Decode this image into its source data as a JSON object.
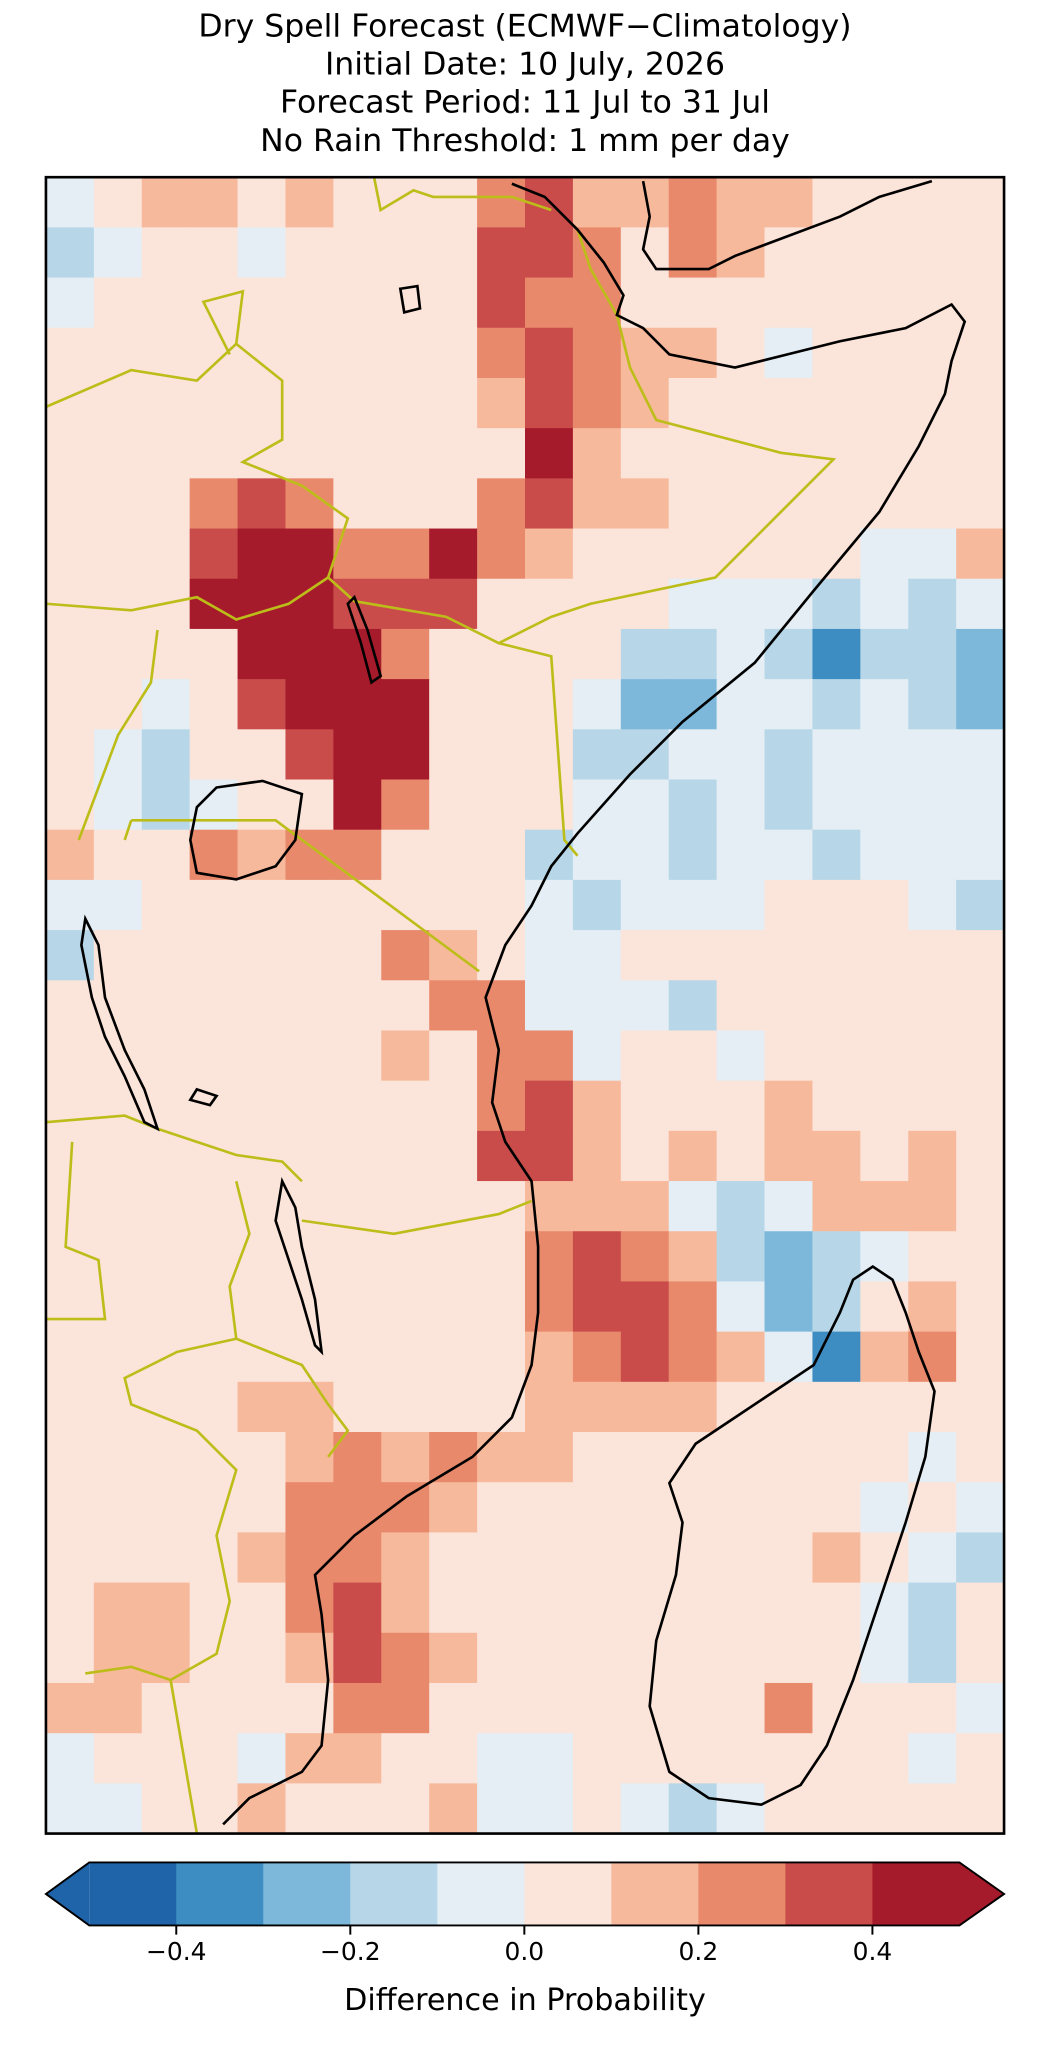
{
  "chart_data": {
    "type": "map",
    "title": [
      "Dry Spell Forecast (ECMWF−Climatology)",
      "Initial Date: 10 July, 2026",
      "Forecast Period: 11 Jul to 31 Jul",
      "No Rain Threshold: 1 mm per day"
    ],
    "values": [
      [
        -0.05,
        0.05,
        0.15,
        0.15,
        0.05,
        0.15,
        0.05,
        0.05,
        0.05,
        0.25,
        0.35,
        0.15,
        0.15,
        0.25,
        0.15,
        0.15,
        0.05,
        0.05,
        0.05,
        0.05
      ],
      [
        -0.15,
        -0.05,
        0.05,
        0.05,
        -0.05,
        0.05,
        0.05,
        0.05,
        0.05,
        0.35,
        0.35,
        0.25,
        0.05,
        0.25,
        0.15,
        0.05,
        0.05,
        0.05,
        0.05,
        0.05
      ],
      [
        -0.05,
        0.05,
        0.05,
        0.05,
        0.05,
        0.05,
        0.05,
        0.05,
        0.05,
        0.35,
        0.25,
        0.25,
        0.05,
        0.05,
        0.05,
        0.05,
        0.05,
        0.05,
        0.05,
        0.05
      ],
      [
        0.05,
        0.05,
        0.05,
        0.05,
        0.05,
        0.05,
        0.05,
        0.05,
        0.05,
        0.25,
        0.35,
        0.25,
        0.15,
        0.15,
        0.05,
        -0.05,
        0.05,
        0.05,
        0.05,
        0.05
      ],
      [
        0.05,
        0.05,
        0.05,
        0.05,
        0.05,
        0.05,
        0.05,
        0.05,
        0.05,
        0.15,
        0.35,
        0.25,
        0.15,
        0.05,
        0.05,
        0.05,
        0.05,
        0.05,
        0.05,
        0.05
      ],
      [
        0.05,
        0.05,
        0.05,
        0.05,
        0.05,
        0.05,
        0.05,
        0.05,
        0.05,
        0.05,
        0.45,
        0.15,
        0.05,
        0.05,
        0.05,
        0.05,
        0.05,
        0.05,
        0.05,
        0.05
      ],
      [
        0.05,
        0.05,
        0.05,
        0.25,
        0.35,
        0.25,
        0.05,
        0.05,
        0.05,
        0.25,
        0.35,
        0.15,
        0.15,
        0.05,
        0.05,
        0.05,
        0.05,
        0.05,
        0.05,
        0.05
      ],
      [
        0.05,
        0.05,
        0.05,
        0.35,
        0.45,
        0.45,
        0.25,
        0.25,
        0.45,
        0.25,
        0.15,
        0.05,
        0.05,
        0.05,
        0.05,
        0.05,
        0.05,
        -0.05,
        -0.05,
        0.15
      ],
      [
        0.05,
        0.05,
        0.05,
        0.45,
        0.45,
        0.45,
        0.35,
        0.35,
        0.35,
        0.05,
        0.05,
        0.05,
        0.05,
        -0.05,
        -0.05,
        -0.05,
        -0.15,
        -0.05,
        -0.15,
        -0.05
      ],
      [
        0.05,
        0.05,
        0.05,
        0.05,
        0.45,
        0.45,
        0.45,
        0.25,
        0.05,
        0.05,
        0.05,
        0.05,
        -0.15,
        -0.15,
        -0.05,
        -0.15,
        -0.35,
        -0.15,
        -0.15,
        -0.25
      ],
      [
        0.05,
        0.05,
        -0.05,
        0.05,
        0.35,
        0.45,
        0.45,
        0.45,
        0.05,
        0.05,
        0.05,
        -0.05,
        -0.25,
        -0.25,
        -0.05,
        -0.05,
        -0.15,
        -0.05,
        -0.15,
        -0.25
      ],
      [
        0.05,
        -0.05,
        -0.15,
        0.05,
        0.05,
        0.35,
        0.45,
        0.45,
        0.05,
        0.05,
        0.05,
        -0.15,
        -0.15,
        -0.05,
        -0.05,
        -0.15,
        -0.05,
        -0.05,
        -0.05,
        -0.05
      ],
      [
        0.05,
        -0.05,
        -0.15,
        -0.05,
        0.05,
        0.05,
        0.45,
        0.25,
        0.05,
        0.05,
        0.05,
        -0.05,
        -0.05,
        -0.15,
        -0.05,
        -0.15,
        -0.05,
        -0.05,
        -0.05,
        -0.05
      ],
      [
        0.15,
        0.05,
        0.05,
        0.25,
        0.15,
        0.25,
        0.25,
        0.05,
        0.05,
        0.05,
        -0.15,
        -0.05,
        -0.05,
        -0.15,
        -0.05,
        -0.05,
        -0.15,
        -0.05,
        -0.05,
        -0.05
      ],
      [
        -0.05,
        -0.05,
        0.05,
        0.05,
        0.05,
        0.05,
        0.05,
        0.05,
        0.05,
        0.05,
        -0.05,
        -0.15,
        -0.05,
        -0.05,
        -0.05,
        0.05,
        0.05,
        0.05,
        -0.05,
        -0.15
      ],
      [
        -0.15,
        0.05,
        0.05,
        0.05,
        0.05,
        0.05,
        0.05,
        0.25,
        0.15,
        0.05,
        -0.05,
        -0.05,
        0.05,
        0.05,
        0.05,
        0.05,
        0.05,
        0.05,
        0.05,
        0.05
      ],
      [
        0.05,
        0.05,
        0.05,
        0.05,
        0.05,
        0.05,
        0.05,
        0.05,
        0.25,
        0.25,
        -0.05,
        -0.05,
        -0.05,
        -0.15,
        0.05,
        0.05,
        0.05,
        0.05,
        0.05,
        0.05
      ],
      [
        0.05,
        0.05,
        0.05,
        0.05,
        0.05,
        0.05,
        0.05,
        0.15,
        0.05,
        0.25,
        0.25,
        -0.05,
        0.05,
        0.05,
        -0.05,
        0.05,
        0.05,
        0.05,
        0.05,
        0.05
      ],
      [
        0.05,
        0.05,
        0.05,
        0.05,
        0.05,
        0.05,
        0.05,
        0.05,
        0.05,
        0.25,
        0.35,
        0.15,
        0.05,
        0.05,
        0.05,
        0.15,
        0.05,
        0.05,
        0.05,
        0.05
      ],
      [
        0.05,
        0.05,
        0.05,
        0.05,
        0.05,
        0.05,
        0.05,
        0.05,
        0.05,
        0.35,
        0.35,
        0.15,
        0.05,
        0.15,
        0.05,
        0.15,
        0.15,
        0.05,
        0.15,
        0.05
      ],
      [
        0.05,
        0.05,
        0.05,
        0.05,
        0.05,
        0.05,
        0.05,
        0.05,
        0.05,
        0.05,
        0.15,
        0.15,
        0.15,
        -0.05,
        -0.15,
        -0.05,
        0.15,
        0.15,
        0.15,
        0.05
      ],
      [
        0.05,
        0.05,
        0.05,
        0.05,
        0.05,
        0.05,
        0.05,
        0.05,
        0.05,
        0.05,
        0.25,
        0.35,
        0.25,
        0.15,
        -0.15,
        -0.25,
        -0.15,
        -0.05,
        0.05,
        0.05
      ],
      [
        0.05,
        0.05,
        0.05,
        0.05,
        0.05,
        0.05,
        0.05,
        0.05,
        0.05,
        0.05,
        0.25,
        0.35,
        0.35,
        0.25,
        -0.05,
        -0.25,
        -0.15,
        0.05,
        0.15,
        0.05
      ],
      [
        0.05,
        0.05,
        0.05,
        0.05,
        0.05,
        0.05,
        0.05,
        0.05,
        0.05,
        0.05,
        0.15,
        0.25,
        0.35,
        0.25,
        0.15,
        -0.05,
        -0.35,
        0.15,
        0.25,
        0.05
      ],
      [
        0.05,
        0.05,
        0.05,
        0.05,
        0.15,
        0.15,
        0.05,
        0.05,
        0.05,
        0.05,
        0.15,
        0.15,
        0.15,
        0.15,
        0.05,
        0.05,
        0.05,
        0.05,
        0.05,
        0.05
      ],
      [
        0.05,
        0.05,
        0.05,
        0.05,
        0.05,
        0.15,
        0.25,
        0.15,
        0.25,
        0.15,
        0.15,
        0.05,
        0.05,
        0.05,
        0.05,
        0.05,
        0.05,
        0.05,
        -0.05,
        0.05
      ],
      [
        0.05,
        0.05,
        0.05,
        0.05,
        0.05,
        0.25,
        0.25,
        0.25,
        0.15,
        0.05,
        0.05,
        0.05,
        0.05,
        0.05,
        0.05,
        0.05,
        0.05,
        -0.05,
        0.05,
        -0.05
      ],
      [
        0.05,
        0.05,
        0.05,
        0.05,
        0.15,
        0.25,
        0.25,
        0.15,
        0.05,
        0.05,
        0.05,
        0.05,
        0.05,
        0.05,
        0.05,
        0.05,
        0.15,
        0.05,
        -0.05,
        -0.15
      ],
      [
        0.05,
        0.15,
        0.15,
        0.05,
        0.05,
        0.25,
        0.35,
        0.15,
        0.05,
        0.05,
        0.05,
        0.05,
        0.05,
        0.05,
        0.05,
        0.05,
        0.05,
        -0.05,
        -0.15,
        0.05
      ],
      [
        0.05,
        0.15,
        0.15,
        0.05,
        0.05,
        0.15,
        0.35,
        0.25,
        0.15,
        0.05,
        0.05,
        0.05,
        0.05,
        0.05,
        0.05,
        0.05,
        0.05,
        -0.05,
        -0.15,
        0.05
      ],
      [
        0.15,
        0.15,
        0.05,
        0.05,
        0.05,
        0.05,
        0.25,
        0.25,
        0.05,
        0.05,
        0.05,
        0.05,
        0.05,
        0.05,
        0.05,
        0.25,
        0.05,
        0.05,
        0.05,
        -0.05
      ],
      [
        -0.05,
        0.05,
        0.05,
        0.05,
        -0.05,
        0.15,
        0.15,
        0.05,
        0.05,
        -0.05,
        -0.05,
        0.05,
        0.05,
        0.05,
        0.05,
        0.05,
        0.05,
        0.05,
        -0.05,
        0.05
      ],
      [
        -0.05,
        -0.05,
        0.05,
        0.05,
        0.15,
        0.05,
        0.05,
        0.05,
        0.15,
        -0.05,
        -0.05,
        0.05,
        -0.05,
        -0.15,
        -0.05,
        0.05,
        0.05,
        0.05,
        0.05,
        0.05
      ]
    ],
    "colorbar": {
      "label": "Difference in Probability",
      "levels": [
        -0.5,
        -0.4,
        -0.3,
        -0.2,
        -0.1,
        0,
        0.1,
        0.2,
        0.3,
        0.4,
        0.5
      ],
      "colors": [
        "#1f63a8",
        "#3d8dc3",
        "#7db8da",
        "#b7d7e8",
        "#e4eef4",
        "#fbe4d9",
        "#f7b99c",
        "#e8896c",
        "#c94c4b",
        "#a61b2b"
      ],
      "ticks": [
        {
          "value": -0.4,
          "label": "−0.4"
        },
        {
          "value": -0.2,
          "label": "−0.2"
        },
        {
          "value": 0,
          "label": "0.0"
        },
        0.2,
        0.4
      ]
    }
  }
}
